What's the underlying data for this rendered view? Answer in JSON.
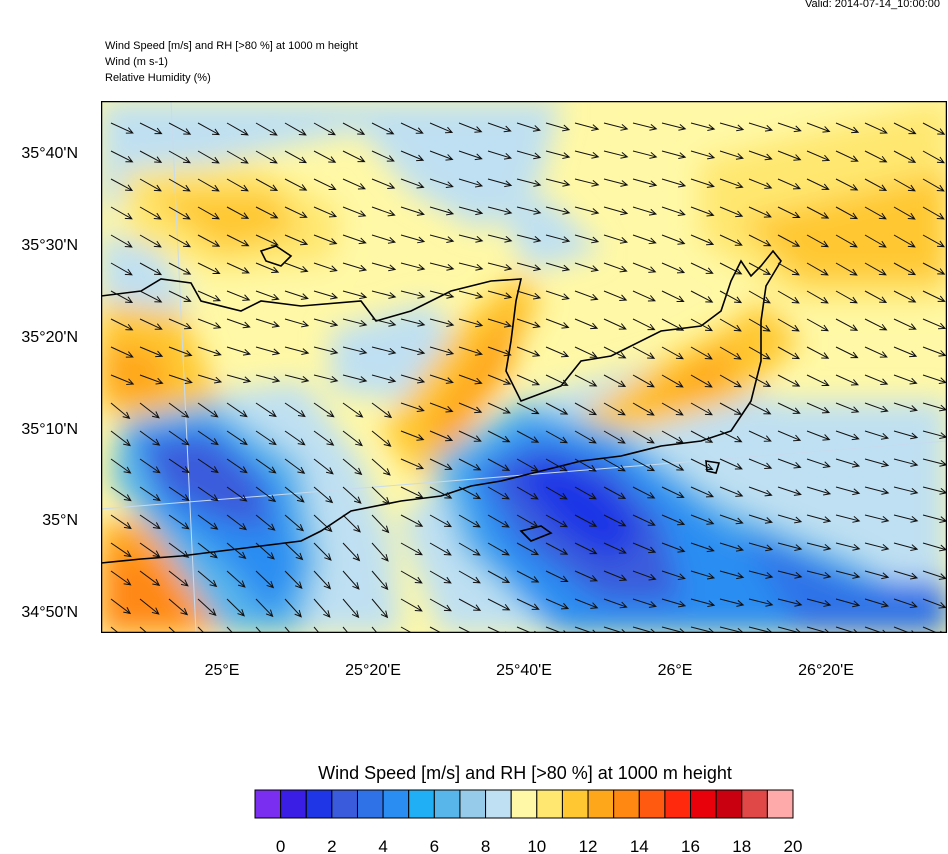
{
  "valid_time": "Valid: 2014-07-14_10:00:00",
  "header": {
    "line1": "Wind Speed [m/s] and RH [>80 %] at 1000 m height",
    "line2": "Wind   (m s-1)",
    "line3": "Relative Humidity   (%)"
  },
  "lat_labels": [
    "35°40'N",
    "35°30'N",
    "35°20'N",
    "35°10'N",
    "35°N",
    "34°50'N"
  ],
  "lon_labels": [
    "25°E",
    "25°20'E",
    "25°40'E",
    "26°E",
    "26°20'E"
  ],
  "colorbar": {
    "title": "Wind Speed [m/s] and RH [>80 %] at 1000 m height",
    "tick_labels": [
      "0",
      "2",
      "4",
      "6",
      "8",
      "10",
      "12",
      "14",
      "16",
      "18",
      "20"
    ],
    "colors": [
      "#7a2ef0",
      "#3a1ee6",
      "#1f36e6",
      "#3a5bdc",
      "#2f72e8",
      "#2a8df2",
      "#20aef5",
      "#58b6ea",
      "#96cbea",
      "#bfe0f2",
      "#fff8a6",
      "#ffe770",
      "#ffc832",
      "#ffa71a",
      "#ff8812",
      "#ff5a10",
      "#ff2a0e",
      "#e8000a",
      "#c80010",
      "#e04848",
      "#ffaaaa"
    ]
  },
  "wind_direction": "north-westerly"
}
